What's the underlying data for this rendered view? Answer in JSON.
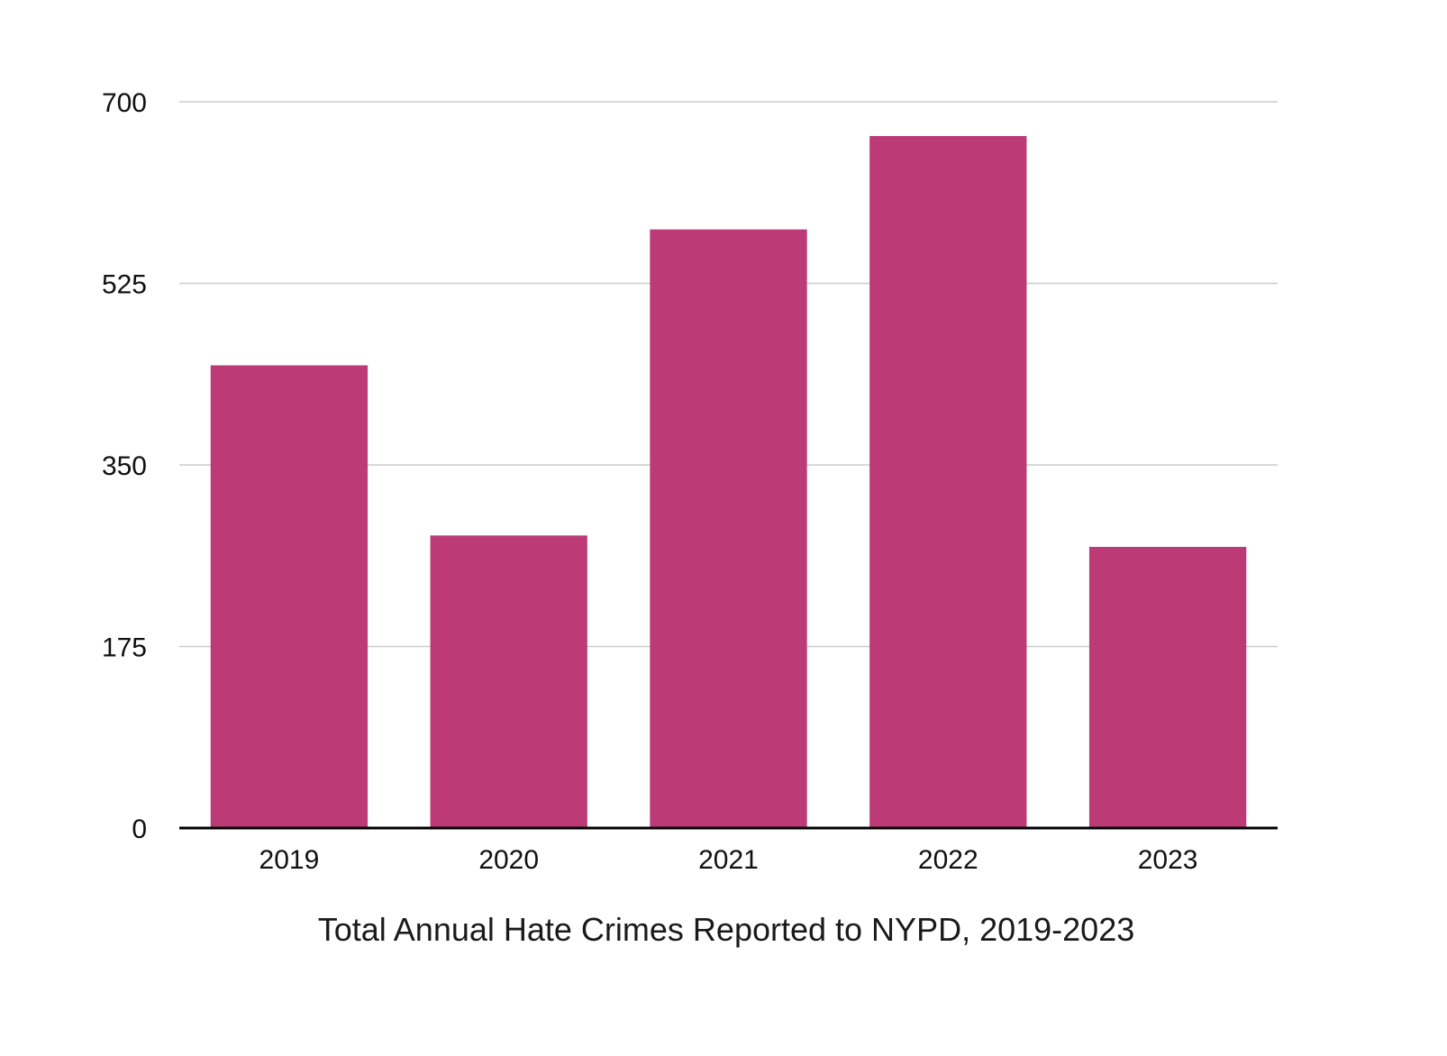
{
  "chart_data": {
    "type": "bar",
    "title": "Total Annual Hate Crimes Reported to NYPD, 2019-2023",
    "xlabel": "",
    "ylabel": "",
    "categories": [
      "2019",
      "2020",
      "2021",
      "2022",
      "2023"
    ],
    "values": [
      446,
      282,
      577,
      667,
      271
    ],
    "ylim": [
      0,
      700
    ],
    "yticks": [
      0,
      175,
      350,
      525,
      700
    ],
    "ytick_labels": [
      "0",
      "175",
      "350",
      "525",
      "700"
    ],
    "grid": true,
    "legend": "none",
    "colors": {
      "bar": "#bc3b76",
      "grid": "#cccccc",
      "axis": "#000000"
    }
  }
}
